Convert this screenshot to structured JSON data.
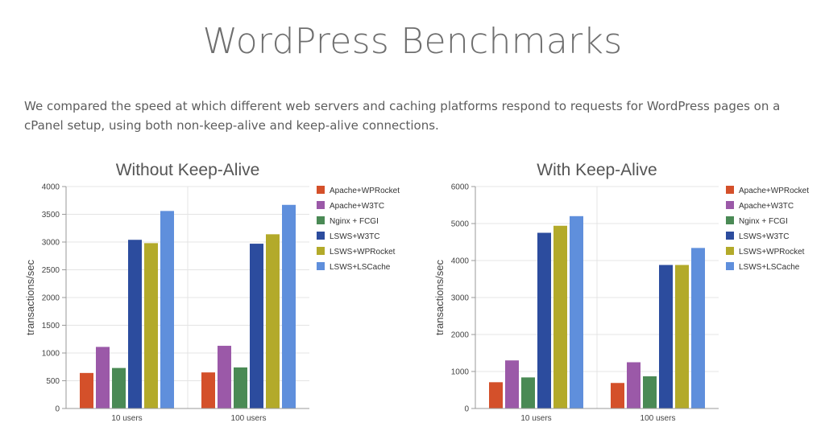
{
  "page": {
    "title": "WordPress Benchmarks",
    "intro": "We compared the speed at which different web servers and caching platforms respond to requests for WordPress pages on a cPanel setup, using both non-keep-alive and keep-alive connections."
  },
  "colors": [
    "#d4502a",
    "#9b59a8",
    "#4a8a55",
    "#2c4c9e",
    "#b3aa2a",
    "#5f8fdc"
  ],
  "chart_data": [
    {
      "type": "bar",
      "title": "Without Keep-Alive",
      "ylabel": "transactions/sec",
      "xlabel": "",
      "categories": [
        "10 users",
        "100 users"
      ],
      "ylim": [
        0,
        4000
      ],
      "yticks": [
        "0",
        "500",
        "1000",
        "1500",
        "2000",
        "2500",
        "3000",
        "3500",
        "4000"
      ],
      "grid": true,
      "legend_position": "right",
      "series": [
        {
          "name": "Apache+WPRocket",
          "values": [
            640,
            650
          ]
        },
        {
          "name": "Apache+W3TC",
          "values": [
            1110,
            1130
          ]
        },
        {
          "name": "Nginx + FCGI",
          "values": [
            730,
            740
          ]
        },
        {
          "name": "LSWS+W3TC",
          "values": [
            3040,
            2970
          ]
        },
        {
          "name": "LSWS+WPRocket",
          "values": [
            2980,
            3140
          ]
        },
        {
          "name": "LSWS+LSCache",
          "values": [
            3560,
            3670
          ]
        }
      ]
    },
    {
      "type": "bar",
      "title": "With Keep-Alive",
      "ylabel": "transactions/sec",
      "xlabel": "",
      "categories": [
        "10 users",
        "100 users"
      ],
      "ylim": [
        0,
        6000
      ],
      "yticks": [
        "0",
        "1000",
        "2000",
        "3000",
        "4000",
        "5000",
        "6000"
      ],
      "grid": true,
      "legend_position": "right",
      "series": [
        {
          "name": "Apache+WPRocket",
          "values": [
            710,
            690
          ]
        },
        {
          "name": "Apache+W3TC",
          "values": [
            1300,
            1250
          ]
        },
        {
          "name": "Nginx + FCGI",
          "values": [
            840,
            870
          ]
        },
        {
          "name": "LSWS+W3TC",
          "values": [
            4750,
            3880
          ]
        },
        {
          "name": "LSWS+WPRocket",
          "values": [
            4940,
            3880
          ]
        },
        {
          "name": "LSWS+LSCache",
          "values": [
            5200,
            4340
          ]
        }
      ]
    }
  ]
}
